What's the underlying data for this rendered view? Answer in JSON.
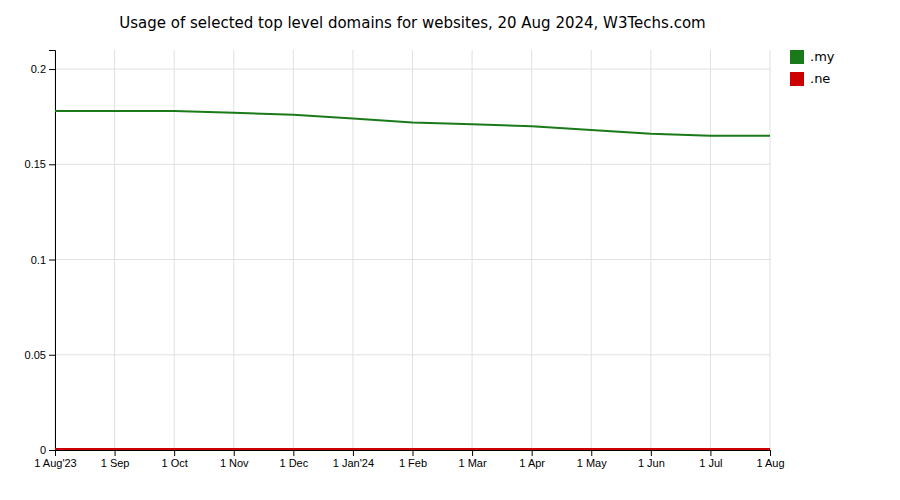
{
  "chart_data": {
    "type": "line",
    "title": "Usage of selected top level domains for websites, 20 Aug 2024, W3Techs.com",
    "categories": [
      "1 Aug'23",
      "1 Sep",
      "1 Oct",
      "1 Nov",
      "1 Dec",
      "1 Jan'24",
      "1 Feb",
      "1 Mar",
      "1 Apr",
      "1 May",
      "1 Jun",
      "1 Jul",
      "1 Aug"
    ],
    "series": [
      {
        "name": ".my",
        "color": "#1a7a1a",
        "values": [
          0.178,
          0.178,
          0.178,
          0.177,
          0.176,
          0.174,
          0.172,
          0.171,
          0.17,
          0.168,
          0.166,
          0.165,
          0.165
        ]
      },
      {
        "name": ".ne",
        "color": "#cc0000",
        "values": [
          0.0005,
          0.0005,
          0.0005,
          0.0005,
          0.0005,
          0.0005,
          0.0005,
          0.0005,
          0.0005,
          0.0005,
          0.0005,
          0.0005,
          0.0005
        ]
      }
    ],
    "ylim": [
      0,
      0.21
    ],
    "yticks": [
      0,
      0.05,
      0.1,
      0.15,
      0.2
    ],
    "grid": true,
    "legend": "right"
  }
}
